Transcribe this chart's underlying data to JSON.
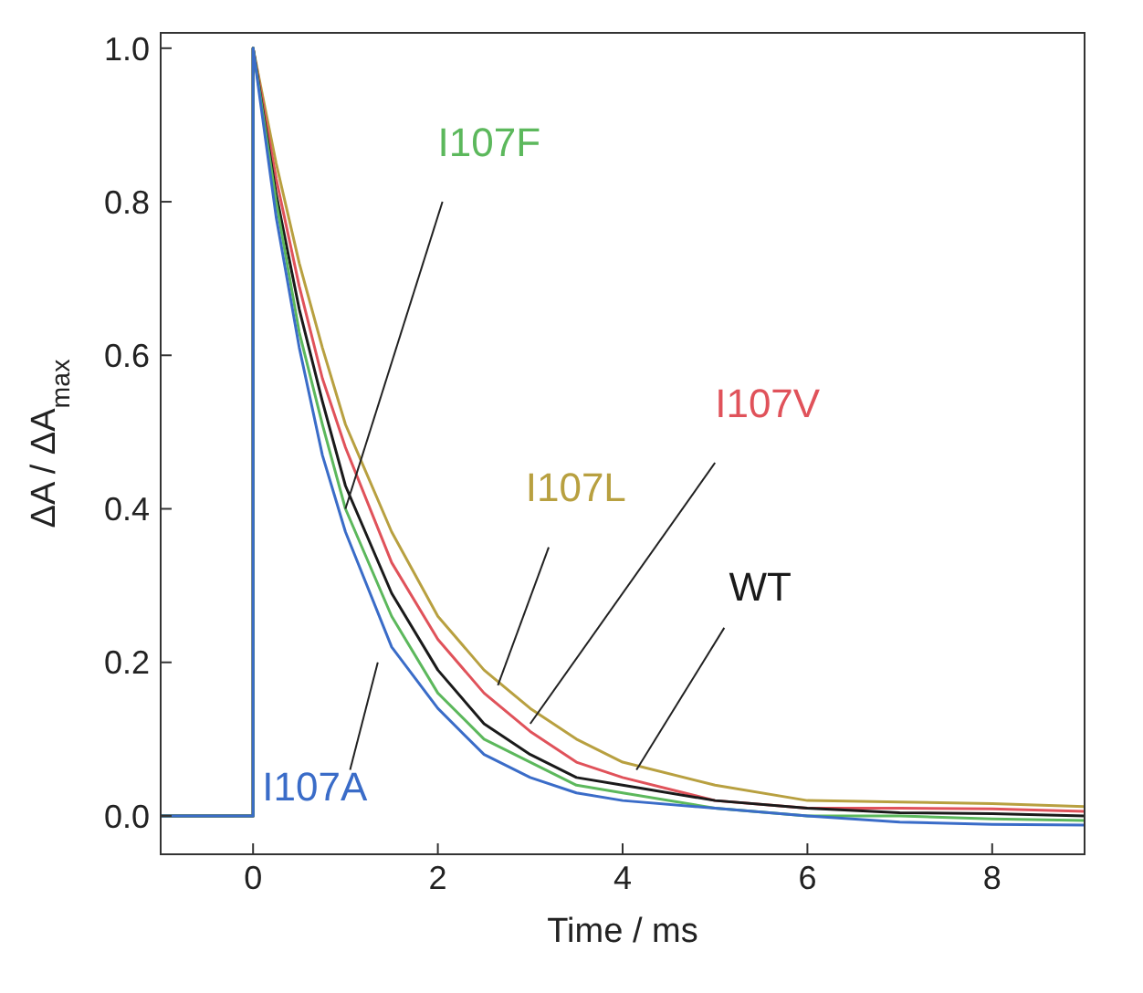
{
  "chart_data": {
    "type": "line",
    "xlabel": "Time / ms",
    "ylabel": "ΔA / ΔA$_{max}$",
    "x": [
      -1,
      0,
      0,
      0.25,
      0.5,
      0.75,
      1,
      1.5,
      2,
      2.5,
      3,
      3.5,
      4,
      5,
      6,
      7,
      8,
      9
    ],
    "series": [
      {
        "name": "I107A",
        "color": "#3a6cc8",
        "values": [
          0,
          0,
          1,
          0.78,
          0.61,
          0.47,
          0.37,
          0.22,
          0.14,
          0.08,
          0.05,
          0.03,
          0.02,
          0.01,
          0,
          -0.008,
          -0.011,
          -0.012
        ]
      },
      {
        "name": "I107F",
        "color": "#5cb85c",
        "values": [
          0,
          0,
          1,
          0.8,
          0.63,
          0.51,
          0.4,
          0.26,
          0.16,
          0.1,
          0.07,
          0.04,
          0.03,
          0.01,
          0,
          0,
          -0.004,
          -0.006
        ]
      },
      {
        "name": "WT",
        "color": "#1a1a1a",
        "values": [
          0,
          0,
          1,
          0.81,
          0.66,
          0.54,
          0.43,
          0.29,
          0.19,
          0.12,
          0.08,
          0.05,
          0.04,
          0.02,
          0.01,
          0.004,
          0.003,
          0
        ]
      },
      {
        "name": "I107V",
        "color": "#e0525a",
        "values": [
          0,
          0,
          1,
          0.83,
          0.69,
          0.57,
          0.48,
          0.33,
          0.23,
          0.16,
          0.11,
          0.07,
          0.05,
          0.02,
          0.01,
          0.01,
          0.009,
          0.006
        ]
      },
      {
        "name": "I107L",
        "color": "#b8a040",
        "values": [
          0,
          0,
          1,
          0.85,
          0.72,
          0.61,
          0.51,
          0.37,
          0.26,
          0.19,
          0.14,
          0.1,
          0.07,
          0.04,
          0.02,
          0.018,
          0.016,
          0.012
        ]
      }
    ],
    "xlim": [
      -1,
      9
    ],
    "xticks": [
      0,
      2,
      4,
      6,
      8
    ],
    "ylim": [
      -0.05,
      1.02
    ],
    "yticks": [
      {
        "value": 0,
        "label": "0.0"
      },
      {
        "value": 0.2,
        "label": "0.2"
      },
      {
        "value": 0.4,
        "label": "0.4"
      },
      {
        "value": 0.6,
        "label": "0.6"
      },
      {
        "value": 0.8,
        "label": "0.8"
      },
      {
        "value": 1,
        "label": "1.0"
      }
    ],
    "legend": false,
    "marker": "none",
    "line_style": "solid",
    "grid": false
  }
}
